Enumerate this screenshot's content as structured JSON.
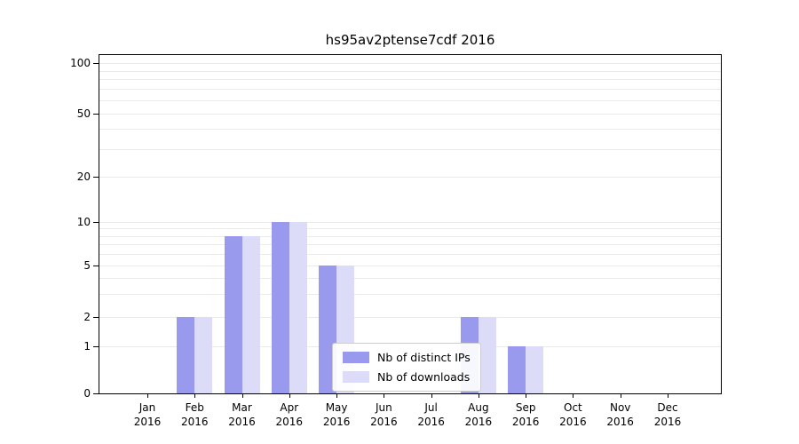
{
  "title": "hs95av2ptense7cdf 2016",
  "chart_data": {
    "type": "bar",
    "title": "hs95av2ptense7cdf 2016",
    "categories": [
      "Jan 2016",
      "Feb 2016",
      "Mar 2016",
      "Apr 2016",
      "May 2016",
      "Jun 2016",
      "Jul 2016",
      "Aug 2016",
      "Sep 2016",
      "Oct 2016",
      "Nov 2016",
      "Dec 2016"
    ],
    "x_tick_labels": [
      [
        "Jan",
        "2016"
      ],
      [
        "Feb",
        "2016"
      ],
      [
        "Mar",
        "2016"
      ],
      [
        "Apr",
        "2016"
      ],
      [
        "May",
        "2016"
      ],
      [
        "Jun",
        "2016"
      ],
      [
        "Jul",
        "2016"
      ],
      [
        "Aug",
        "2016"
      ],
      [
        "Sep",
        "2016"
      ],
      [
        "Oct",
        "2016"
      ],
      [
        "Nov",
        "2016"
      ],
      [
        "Dec",
        "2016"
      ]
    ],
    "y_ticks": [
      0,
      1,
      2,
      5,
      10,
      20,
      50,
      100
    ],
    "ylim": [
      0,
      100
    ],
    "yscale": "symlog",
    "grid": true,
    "legend_position": "lower center",
    "series": [
      {
        "key": "distinct-ips",
        "name": "Nb of distinct IPs",
        "color": "#9999ee",
        "values": [
          0,
          2,
          8,
          10,
          5,
          0,
          0,
          2,
          1,
          0,
          0,
          0
        ]
      },
      {
        "key": "downloads",
        "name": "Nb of downloads",
        "color": "#dcdcf8",
        "values": [
          0,
          2,
          8,
          10,
          5,
          0,
          0,
          2,
          1,
          0,
          0,
          0
        ]
      }
    ]
  }
}
